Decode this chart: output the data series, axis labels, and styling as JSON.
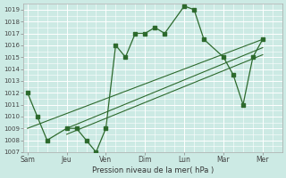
{
  "title": "",
  "xlabel": "Pression niveau de la mer( hPa )",
  "bg_color": "#cceae4",
  "grid_color": "#ffffff",
  "line_color": "#2d6a2d",
  "ylim": [
    1007,
    1019.5
  ],
  "yticks": [
    1007,
    1008,
    1009,
    1010,
    1011,
    1012,
    1013,
    1014,
    1015,
    1016,
    1017,
    1018,
    1019
  ],
  "x_labels": [
    "Sam",
    "Jeu",
    "Ven",
    "Dim",
    "Lun",
    "Mar",
    "Mer"
  ],
  "x_positions": [
    0,
    2,
    4,
    6,
    8,
    10,
    12
  ],
  "xlim": [
    -0.2,
    13.0
  ],
  "main_line_x": [
    0,
    0.5,
    1.0,
    2.0,
    2.5,
    3.0,
    3.5,
    4.0,
    4.5,
    5.0,
    5.5,
    6.0,
    6.5,
    7.0,
    8.0,
    8.5,
    9.0,
    10.0,
    10.5,
    11.0,
    11.5,
    12.0
  ],
  "main_line_y": [
    1012,
    1010,
    1008,
    1009,
    1009,
    1008,
    1007,
    1009,
    1016,
    1015,
    1017,
    1017,
    1017.5,
    1017,
    1019.3,
    1019.0,
    1016.5,
    1015,
    1013.5,
    1011,
    1015,
    1016.5
  ],
  "trend1_x": [
    0,
    12
  ],
  "trend1_y": [
    1009.0,
    1016.5
  ],
  "trend2_x": [
    2,
    12
  ],
  "trend2_y": [
    1009.0,
    1015.8
  ],
  "trend3_x": [
    2,
    12
  ],
  "trend3_y": [
    1008.5,
    1015.2
  ]
}
